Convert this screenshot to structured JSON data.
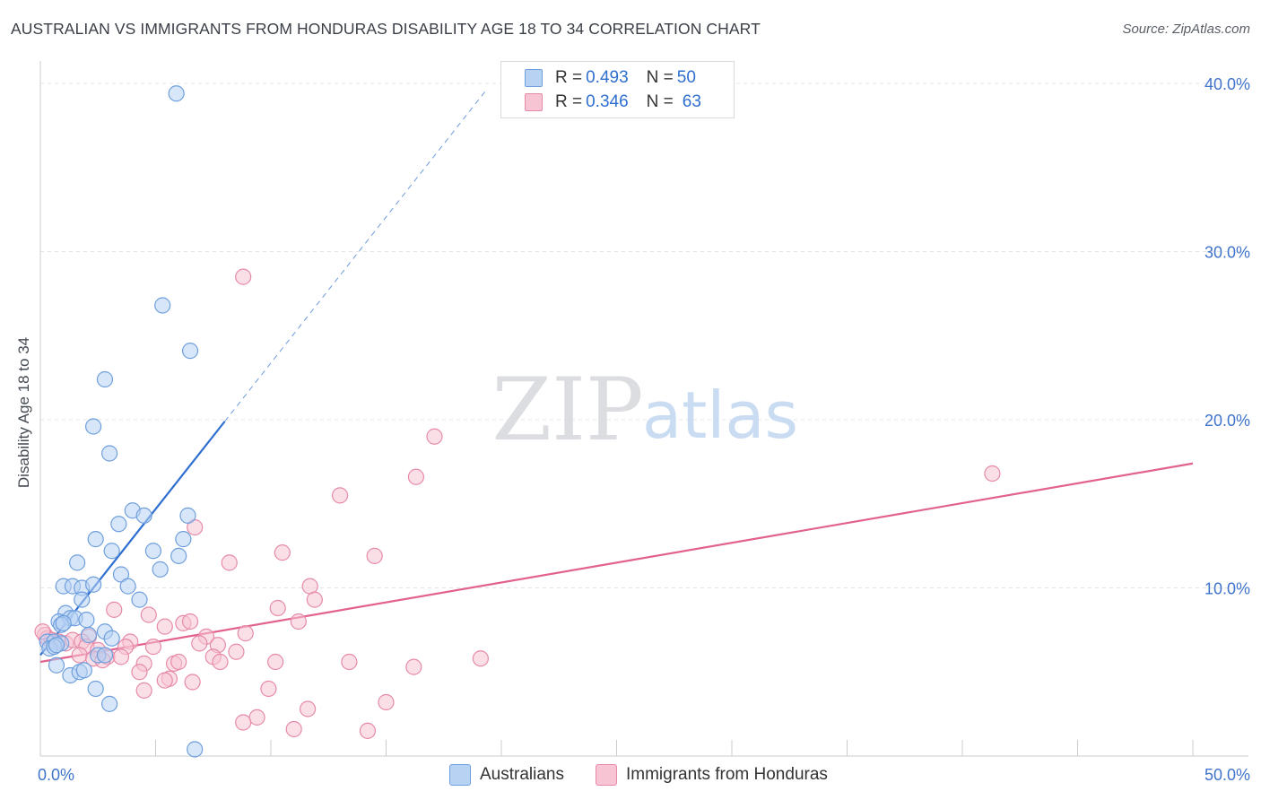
{
  "title": "AUSTRALIAN VS IMMIGRANTS FROM HONDURAS DISABILITY AGE 18 TO 34 CORRELATION CHART",
  "source": "Source: ZipAtlas.com",
  "watermark": {
    "zip": "ZIP",
    "atlas": "atlas"
  },
  "legend": {
    "australians": {
      "r_label": "R =",
      "r_value": "0.493",
      "n_label": "N =",
      "n_value": "50"
    },
    "honduras": {
      "r_label": "R =",
      "r_value": "0.346",
      "n_label": "N =",
      "n_value": "63"
    }
  },
  "bottom_legend": {
    "australians": "Australians",
    "honduras": "Immigrants from Honduras"
  },
  "colors": {
    "blue_fill": "#b8d2f4",
    "blue_stroke": "#6e9fdc",
    "blue_line": "#2f6fd0",
    "pink_fill": "#f7c4d3",
    "pink_stroke": "#e68aa8",
    "pink_line": "#e2628f",
    "grid": "#e2e4e7",
    "axis_label": "#3f74cc"
  },
  "chart_data": {
    "type": "scatter",
    "title": "AUSTRALIAN VS IMMIGRANTS FROM HONDURAS DISABILITY AGE 18 TO 34 CORRELATION CHART",
    "xlabel": "",
    "ylabel": "Disability Age 18 to 34",
    "xlim": [
      0,
      50
    ],
    "ylim": [
      0,
      40.8
    ],
    "x_tick_labels": [
      "0.0%",
      "50.0%"
    ],
    "y_ticks": [
      10,
      20,
      30,
      40
    ],
    "y_tick_labels": [
      "10.0%",
      "20.0%",
      "30.0%",
      "40.0%"
    ],
    "legend_position": "top-center",
    "series": [
      {
        "name": "Australians",
        "color_key": "blue",
        "r": 0.493,
        "n": 50,
        "trend": {
          "x0": 0,
          "y0": 6.0,
          "x1": 8.0,
          "y1": 19.9,
          "dash_to_x": 19.4,
          "dash_to_y": 39.7
        },
        "points": [
          [
            5.9,
            39.4
          ],
          [
            5.3,
            26.8
          ],
          [
            6.5,
            24.1
          ],
          [
            2.8,
            22.4
          ],
          [
            2.3,
            19.6
          ],
          [
            3.0,
            18.0
          ],
          [
            4.0,
            14.6
          ],
          [
            4.5,
            14.3
          ],
          [
            6.4,
            14.3
          ],
          [
            3.4,
            13.8
          ],
          [
            2.4,
            12.9
          ],
          [
            6.2,
            12.9
          ],
          [
            3.1,
            12.2
          ],
          [
            4.9,
            12.2
          ],
          [
            6.0,
            11.9
          ],
          [
            1.6,
            11.5
          ],
          [
            5.2,
            11.1
          ],
          [
            3.5,
            10.8
          ],
          [
            1.0,
            10.1
          ],
          [
            1.4,
            10.1
          ],
          [
            1.8,
            10.0
          ],
          [
            2.3,
            10.2
          ],
          [
            3.8,
            10.1
          ],
          [
            1.8,
            9.3
          ],
          [
            4.3,
            9.3
          ],
          [
            1.1,
            8.5
          ],
          [
            0.8,
            8.0
          ],
          [
            1.3,
            8.2
          ],
          [
            1.5,
            8.2
          ],
          [
            2.0,
            8.1
          ],
          [
            0.9,
            7.8
          ],
          [
            1.0,
            7.9
          ],
          [
            2.8,
            7.4
          ],
          [
            2.1,
            7.2
          ],
          [
            3.1,
            7.0
          ],
          [
            0.3,
            6.8
          ],
          [
            0.6,
            6.8
          ],
          [
            0.9,
            6.7
          ],
          [
            0.4,
            6.4
          ],
          [
            0.6,
            6.5
          ],
          [
            0.7,
            6.6
          ],
          [
            2.5,
            6.0
          ],
          [
            2.8,
            6.0
          ],
          [
            0.7,
            5.4
          ],
          [
            1.3,
            4.8
          ],
          [
            1.7,
            5.0
          ],
          [
            1.9,
            5.1
          ],
          [
            2.4,
            4.0
          ],
          [
            3.0,
            3.1
          ],
          [
            6.7,
            0.4
          ]
        ]
      },
      {
        "name": "Immigrants from Honduras",
        "color_key": "pink",
        "r": 0.346,
        "n": 63,
        "trend": {
          "x0": 0,
          "y0": 5.6,
          "x1": 50,
          "y1": 17.4
        },
        "points": [
          [
            8.8,
            28.5
          ],
          [
            17.1,
            19.0
          ],
          [
            16.3,
            16.6
          ],
          [
            13.0,
            15.5
          ],
          [
            41.3,
            16.8
          ],
          [
            6.7,
            13.6
          ],
          [
            10.5,
            12.1
          ],
          [
            8.2,
            11.5
          ],
          [
            14.5,
            11.9
          ],
          [
            11.7,
            10.1
          ],
          [
            11.9,
            9.3
          ],
          [
            10.3,
            8.8
          ],
          [
            3.2,
            8.7
          ],
          [
            4.7,
            8.4
          ],
          [
            6.2,
            7.9
          ],
          [
            6.5,
            8.0
          ],
          [
            5.4,
            7.7
          ],
          [
            11.2,
            8.0
          ],
          [
            8.9,
            7.3
          ],
          [
            7.2,
            7.1
          ],
          [
            2.1,
            7.1
          ],
          [
            0.2,
            7.2
          ],
          [
            0.3,
            7.0
          ],
          [
            0.5,
            6.9
          ],
          [
            0.8,
            6.8
          ],
          [
            1.1,
            6.7
          ],
          [
            1.4,
            6.9
          ],
          [
            1.8,
            6.8
          ],
          [
            2.0,
            6.5
          ],
          [
            3.9,
            6.8
          ],
          [
            3.7,
            6.5
          ],
          [
            4.9,
            6.5
          ],
          [
            6.9,
            6.7
          ],
          [
            7.7,
            6.6
          ],
          [
            8.5,
            6.2
          ],
          [
            2.5,
            6.3
          ],
          [
            2.9,
            5.9
          ],
          [
            1.7,
            6.0
          ],
          [
            2.3,
            5.8
          ],
          [
            2.7,
            5.7
          ],
          [
            3.5,
            5.9
          ],
          [
            4.5,
            5.5
          ],
          [
            5.8,
            5.5
          ],
          [
            6.0,
            5.6
          ],
          [
            7.5,
            5.9
          ],
          [
            7.8,
            5.6
          ],
          [
            10.2,
            5.6
          ],
          [
            13.4,
            5.6
          ],
          [
            16.2,
            5.3
          ],
          [
            19.1,
            5.8
          ],
          [
            4.3,
            5.0
          ],
          [
            5.6,
            4.6
          ],
          [
            5.4,
            4.5
          ],
          [
            6.6,
            4.4
          ],
          [
            4.5,
            3.9
          ],
          [
            9.9,
            4.0
          ],
          [
            15.0,
            3.2
          ],
          [
            11.6,
            2.8
          ],
          [
            9.4,
            2.3
          ],
          [
            8.8,
            2.0
          ],
          [
            11.0,
            1.6
          ],
          [
            14.2,
            1.5
          ],
          [
            0.1,
            7.4
          ]
        ]
      }
    ]
  }
}
